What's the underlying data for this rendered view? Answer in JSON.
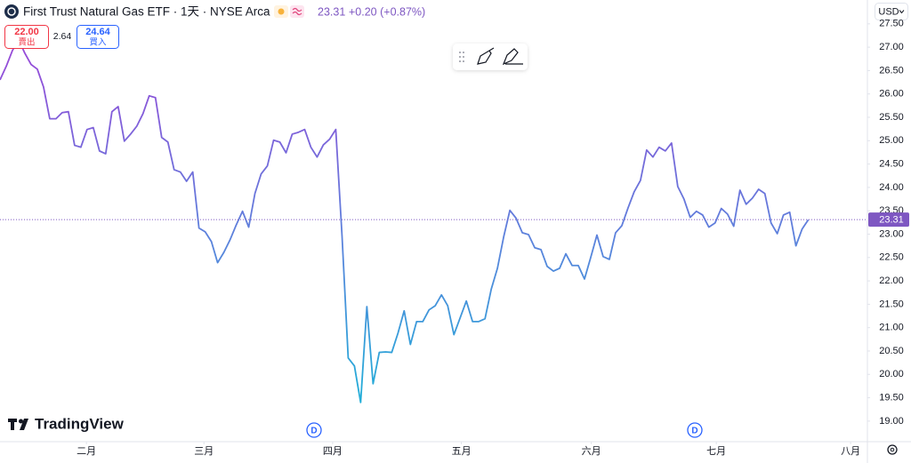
{
  "chart_data": {
    "type": "line",
    "title": "First Trust Natural Gas ETF · 1天 · NYSE Arca",
    "values": [
      26.3,
      26.59,
      26.93,
      27.16,
      26.87,
      26.63,
      26.53,
      26.15,
      25.47,
      25.47,
      25.6,
      25.62,
      24.9,
      24.86,
      25.24,
      25.28,
      24.78,
      24.72,
      25.62,
      25.73,
      24.99,
      25.14,
      25.31,
      25.58,
      25.96,
      25.92,
      25.07,
      24.97,
      24.38,
      24.33,
      24.13,
      24.33,
      23.13,
      23.05,
      22.84,
      22.39,
      22.61,
      22.88,
      23.2,
      23.49,
      23.15,
      23.87,
      24.29,
      24.46,
      25.01,
      24.97,
      24.74,
      25.14,
      25.18,
      25.24,
      24.86,
      24.65,
      24.91,
      25.03,
      25.24,
      22.98,
      20.35,
      20.18,
      19.4,
      21.45,
      19.8,
      20.47,
      20.48,
      20.47,
      20.88,
      21.36,
      20.64,
      21.13,
      21.13,
      21.38,
      21.47,
      21.7,
      21.47,
      20.85,
      21.21,
      21.57,
      21.13,
      21.13,
      21.19,
      21.82,
      22.27,
      22.94,
      23.51,
      23.34,
      23.03,
      22.99,
      22.71,
      22.67,
      22.31,
      22.21,
      22.27,
      22.58,
      22.33,
      22.33,
      22.04,
      22.5,
      22.98,
      22.52,
      22.46,
      23.03,
      23.18,
      23.56,
      23.91,
      24.15,
      24.8,
      24.65,
      24.86,
      24.78,
      24.95,
      24.02,
      23.75,
      23.36,
      23.49,
      23.41,
      23.15,
      23.24,
      23.55,
      23.43,
      23.17,
      23.94,
      23.64,
      23.77,
      23.96,
      23.87,
      23.24,
      23.01,
      23.41,
      23.47,
      22.75,
      23.11,
      23.31
    ],
    "colors": [
      "#9c46d8",
      "#5b83dc",
      "#1fb0d8"
    ],
    "grid": false,
    "xlim": [
      0,
      139.5
    ],
    "xticks": [
      {
        "value": 13.9,
        "label": "二月"
      },
      {
        "value": 32.8,
        "label": "三月"
      },
      {
        "value": 53.5,
        "label": "四月"
      },
      {
        "value": 74.2,
        "label": "五月"
      },
      {
        "value": 95.1,
        "label": "六月"
      },
      {
        "value": 115.2,
        "label": "七月"
      },
      {
        "value": 136.8,
        "label": "八月"
      }
    ],
    "ylim": [
      18.56,
      28.01
    ],
    "yticks": [
      {
        "value": 19,
        "label": "19.00"
      },
      {
        "value": 19.5,
        "label": "19.50"
      },
      {
        "value": 20,
        "label": "20.00"
      },
      {
        "value": 20.5,
        "label": "20.50"
      },
      {
        "value": 21,
        "label": "21.00"
      },
      {
        "value": 21.5,
        "label": "21.50"
      },
      {
        "value": 22,
        "label": "22.00"
      },
      {
        "value": 22.5,
        "label": "22.50"
      },
      {
        "value": 23,
        "label": "23.00"
      },
      {
        "value": 23.5,
        "label": "23.50"
      },
      {
        "value": 24,
        "label": "24.00"
      },
      {
        "value": 24.5,
        "label": "24.50"
      },
      {
        "value": 25,
        "label": "25.00"
      },
      {
        "value": 25.5,
        "label": "25.50"
      },
      {
        "value": 26,
        "label": "26.00"
      },
      {
        "value": 26.5,
        "label": "26.50"
      },
      {
        "value": 27,
        "label": "27.00"
      },
      {
        "value": 27.5,
        "label": "27.50"
      }
    ],
    "last_price": 23.31,
    "last_price_color": "#7e57c2"
  },
  "ui": {
    "change": "+0.20 (+0.87%)",
    "sell_price": "22.00",
    "sell_label": "賣出",
    "spread": 2.64,
    "buy_price": 24.64,
    "buy_label": "買入",
    "currency": "USD",
    "event_markers": [
      "D",
      "D"
    ],
    "logo": "TradingView"
  }
}
